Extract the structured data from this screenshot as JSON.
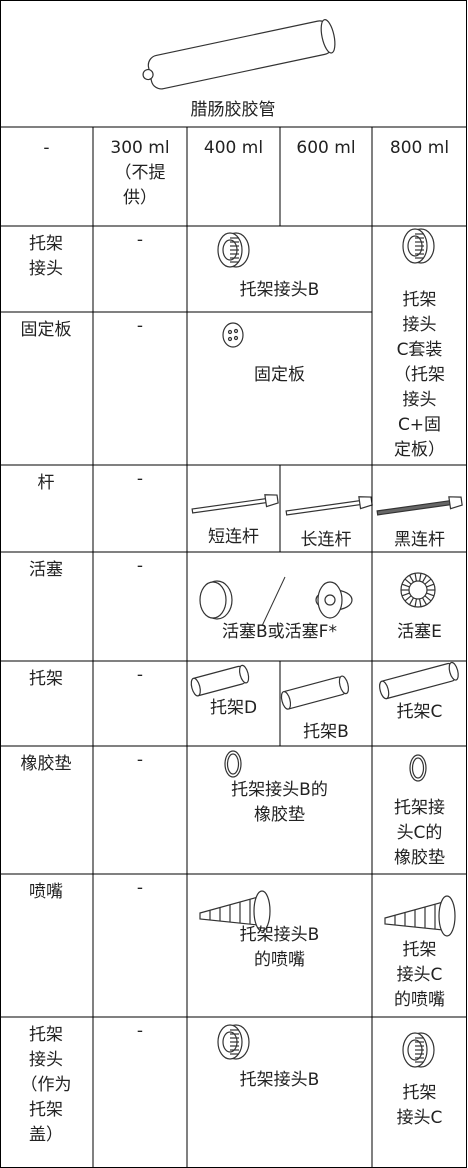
{
  "cartridge_label": "腊肠胶胶管",
  "column_headers": [
    [
      "-"
    ],
    [
      "300 ml",
      "（不提",
      "供）"
    ],
    [
      "400 ml"
    ],
    [
      "600 ml"
    ],
    [
      "800 ml"
    ]
  ],
  "rows": [
    {
      "label": [
        "托架",
        "接头"
      ],
      "cells": [
        [
          "-"
        ],
        [
          "托架接头B"
        ],
        [
          "托架",
          "接头",
          "C套装",
          "（托架",
          "接头",
          "C+固",
          "定板）"
        ]
      ]
    },
    {
      "label": [
        "固定板"
      ],
      "cells": [
        [
          "-"
        ],
        [
          "固定板"
        ]
      ]
    },
    {
      "label": [
        "杆"
      ],
      "cells": [
        [
          "-"
        ],
        [
          "短连杆"
        ],
        [
          "长连杆"
        ],
        [
          "黑连杆"
        ]
      ]
    },
    {
      "label": [
        "活塞"
      ],
      "cells": [
        [
          "-"
        ],
        [
          "活塞B或活塞F*"
        ],
        [
          "活塞E"
        ]
      ]
    },
    {
      "label": [
        "托架"
      ],
      "cells": [
        [
          "-"
        ],
        [
          "托架D"
        ],
        [
          "托架B"
        ],
        [
          "托架C"
        ]
      ]
    },
    {
      "label": [
        "橡胶垫"
      ],
      "cells": [
        [
          "-"
        ],
        [
          "托架接头B的",
          "橡胶垫"
        ],
        [
          "托架接",
          "头C的",
          "橡胶垫"
        ]
      ]
    },
    {
      "label": [
        "喷嘴"
      ],
      "cells": [
        [
          "-"
        ],
        [
          "托架接头B",
          "的喷嘴"
        ],
        [
          "托架",
          "接头C",
          "的喷嘴"
        ]
      ]
    },
    {
      "label": [
        "托架",
        "接头",
        "（作为",
        "托架",
        "盖）"
      ],
      "cells": [
        [
          "-"
        ],
        [
          "托架接头B"
        ],
        [
          "托架",
          "接头C"
        ]
      ]
    }
  ]
}
